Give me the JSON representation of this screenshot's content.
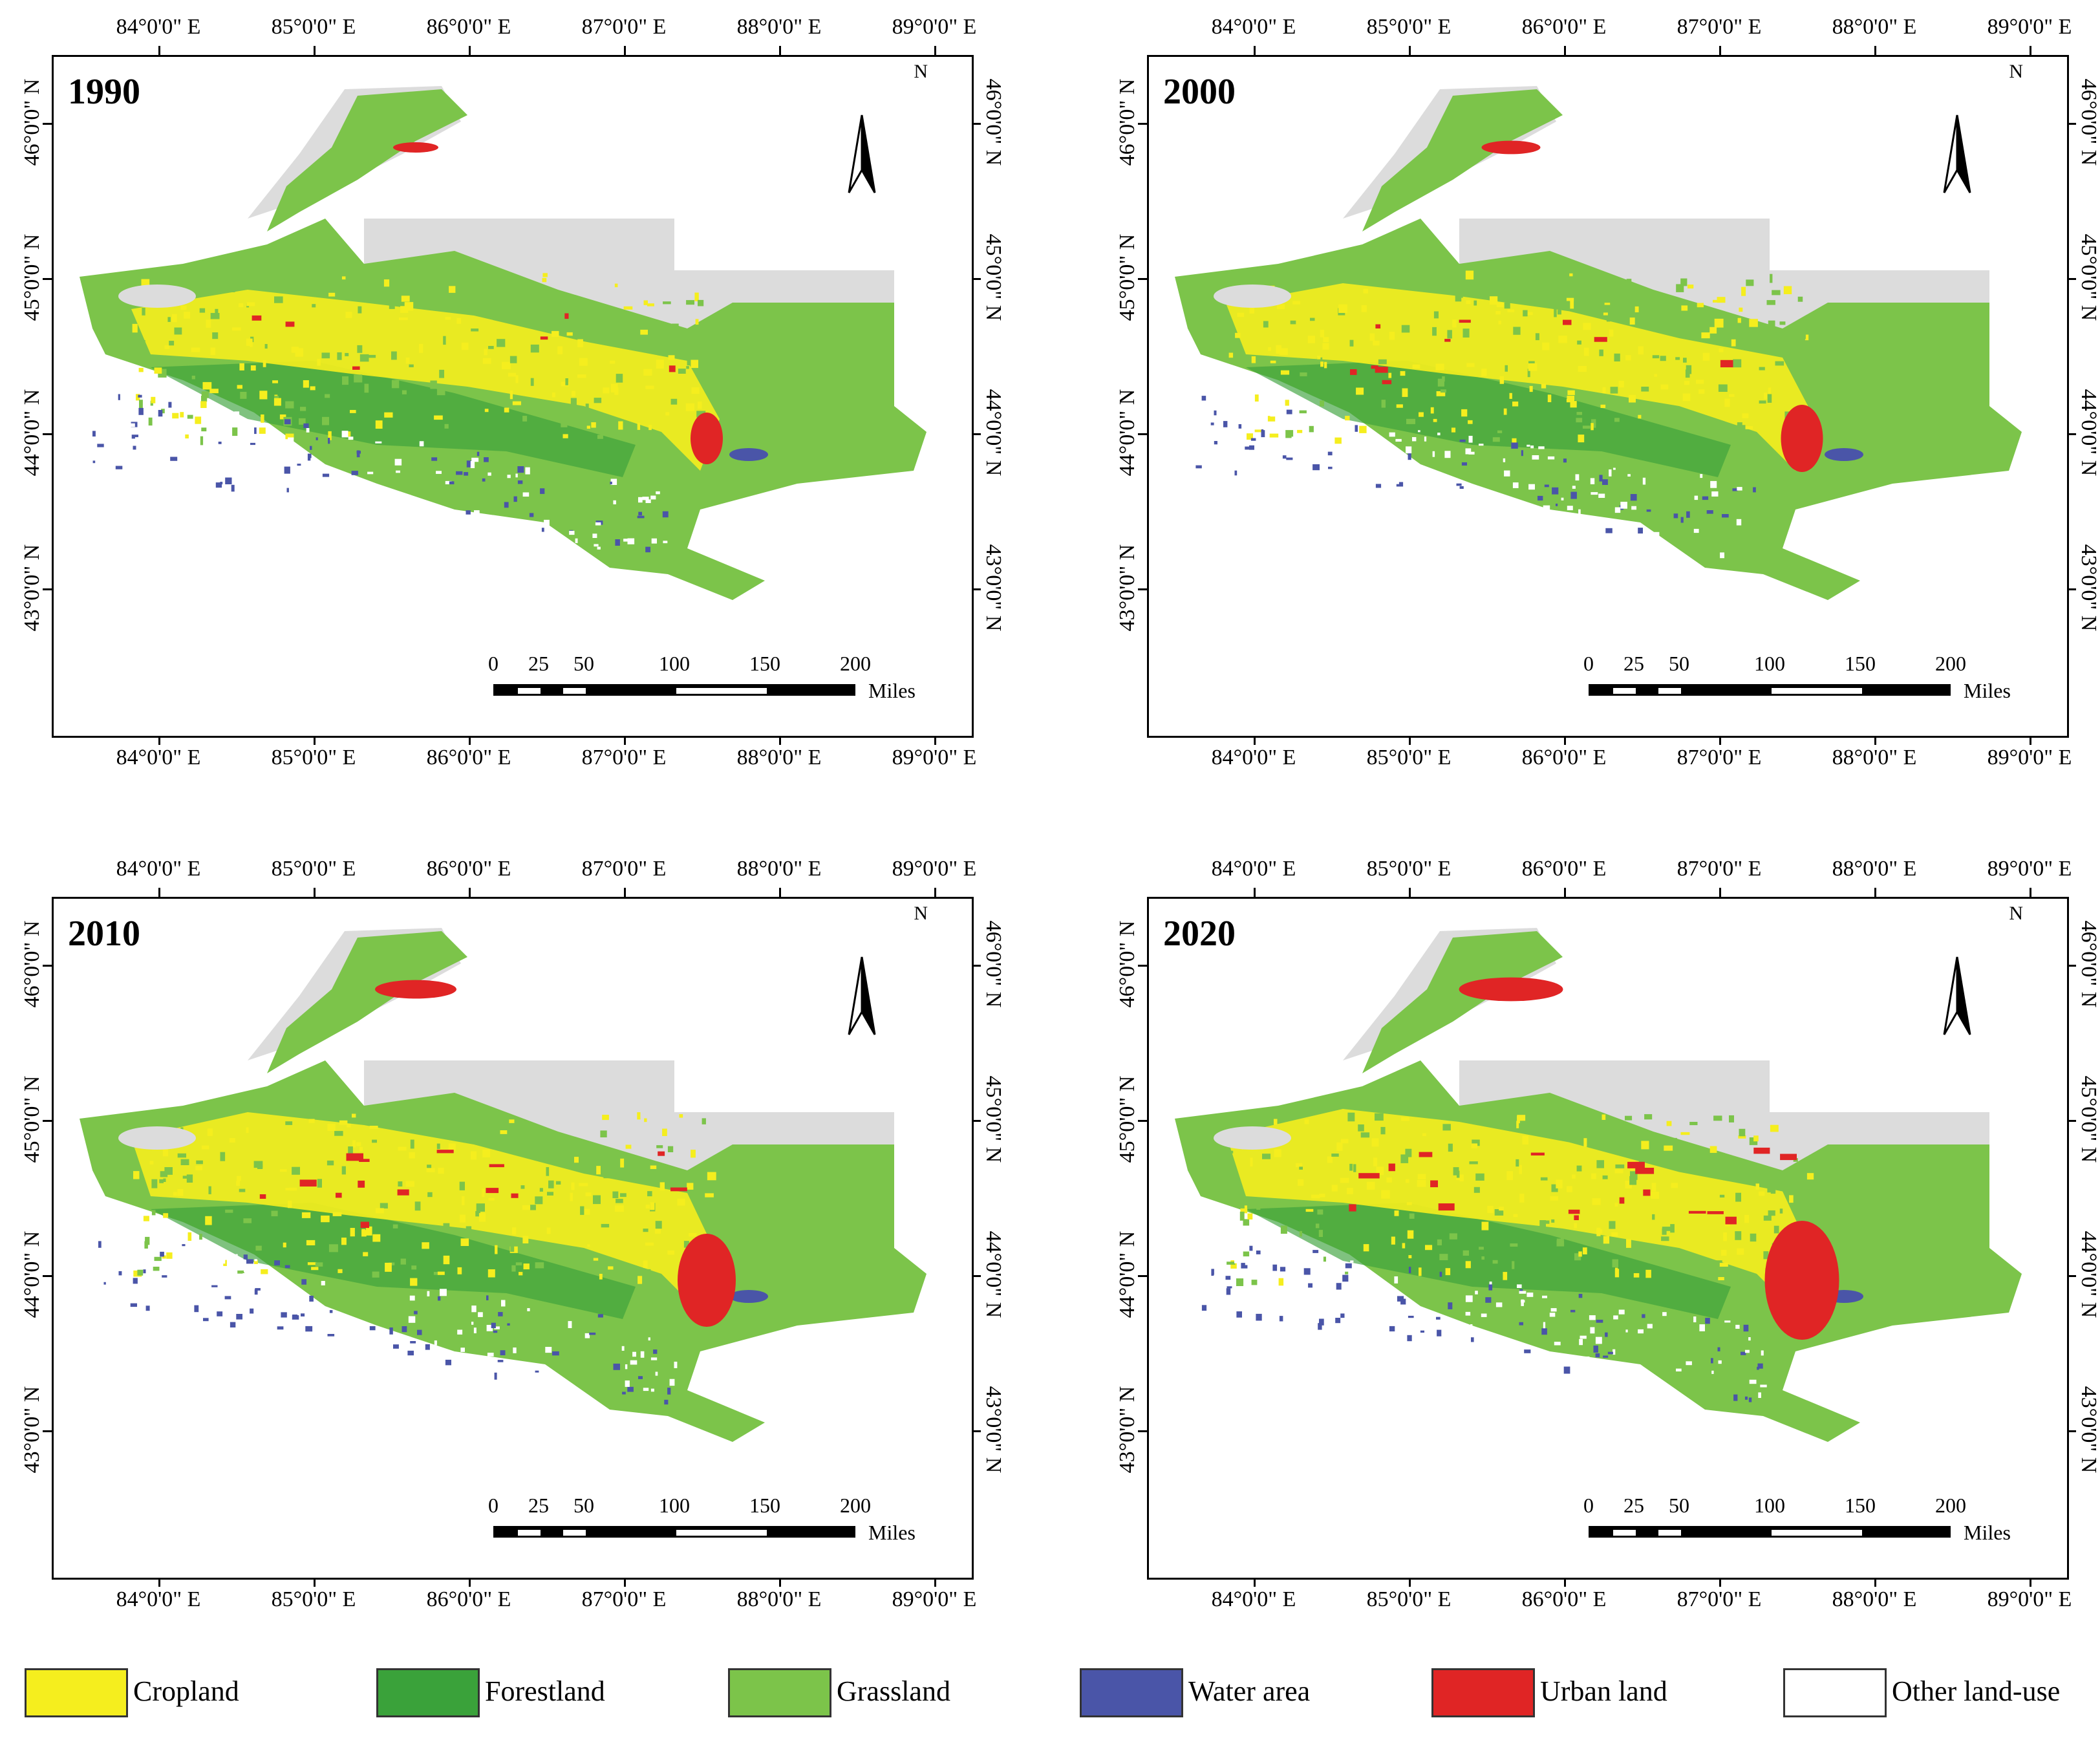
{
  "panels": [
    {
      "year": "1990"
    },
    {
      "year": "2000"
    },
    {
      "year": "2010"
    },
    {
      "year": "2020"
    }
  ],
  "longitude_labels": [
    "84°0'0\" E",
    "85°0'0\" E",
    "86°0'0\" E",
    "87°0'0\" E",
    "88°0'0\" E",
    "89°0'0\" E"
  ],
  "latitude_labels": [
    "46°0'0\" N",
    "45°0'0\" N",
    "44°0'0\" N",
    "43°0'0\" N"
  ],
  "north_arrow": "N",
  "scale_bar": {
    "ticks": [
      "0",
      "25",
      "50",
      "100",
      "150",
      "200"
    ],
    "unit": "Miles"
  },
  "legend": [
    {
      "label": "Cropland",
      "color": "#f5ee1e"
    },
    {
      "label": "Forestland",
      "color": "#3aa23a"
    },
    {
      "label": "Grassland",
      "color": "#7cc44a"
    },
    {
      "label": "Water area",
      "color": "#4a55a8"
    },
    {
      "label": "Urban land",
      "color": "#e02525"
    },
    {
      "label": "Other land-use",
      "color": "#ffffff"
    }
  ]
}
